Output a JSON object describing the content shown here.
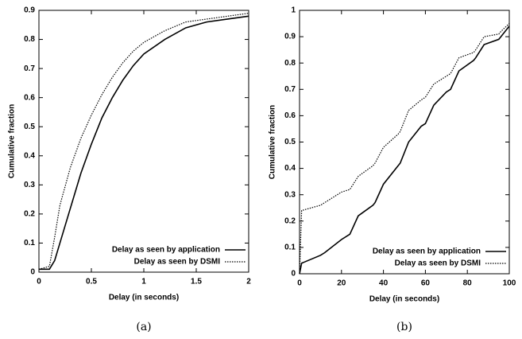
{
  "chart_data": [
    {
      "type": "line",
      "caption": "(a)",
      "xlabel": "Delay (in seconds)",
      "ylabel": "Cumulative fraction",
      "xlim": [
        0,
        2
      ],
      "ylim": [
        0,
        0.9
      ],
      "xticks": [
        0,
        0.5,
        1,
        1.5,
        2
      ],
      "yticks": [
        0,
        0.1,
        0.2,
        0.3,
        0.4,
        0.5,
        0.6,
        0.7,
        0.8,
        0.9
      ],
      "legend": "lower right",
      "x": [
        0,
        0.1,
        0.15,
        0.2,
        0.3,
        0.4,
        0.5,
        0.6,
        0.7,
        0.8,
        0.9,
        1.0,
        1.2,
        1.4,
        1.6,
        1.8,
        2.0
      ],
      "series": [
        {
          "name": "Delay as seen by application",
          "color": "#000000",
          "line_style": "solid",
          "values": [
            0.01,
            0.01,
            0.04,
            0.1,
            0.22,
            0.34,
            0.44,
            0.53,
            0.6,
            0.66,
            0.71,
            0.75,
            0.8,
            0.84,
            0.86,
            0.87,
            0.88
          ]
        },
        {
          "name": "Delay as seen by DSMI",
          "color": "#000000",
          "line_style": "dotted",
          "values": [
            0.01,
            0.02,
            0.12,
            0.23,
            0.36,
            0.46,
            0.54,
            0.61,
            0.67,
            0.72,
            0.76,
            0.79,
            0.83,
            0.86,
            0.87,
            0.88,
            0.89
          ]
        }
      ]
    },
    {
      "type": "line",
      "caption": "(b)",
      "xlabel": "Delay (in seconds)",
      "ylabel": "Cumulative fraction",
      "xlim": [
        0,
        100
      ],
      "ylim": [
        0,
        1
      ],
      "xticks": [
        0,
        20,
        40,
        60,
        80,
        100
      ],
      "yticks": [
        0,
        0.1,
        0.2,
        0.3,
        0.4,
        0.5,
        0.6,
        0.7,
        0.8,
        0.9,
        1
      ],
      "legend": "lower right",
      "x": [
        0,
        1,
        10,
        12,
        20,
        24,
        28,
        35,
        36,
        40,
        47,
        48,
        52,
        58,
        60,
        64,
        70,
        72,
        76,
        83,
        84,
        88,
        95,
        96,
        100
      ],
      "series": [
        {
          "name": "Delay as seen by application",
          "color": "#000000",
          "line_style": "solid",
          "values": [
            0,
            0.04,
            0.07,
            0.08,
            0.13,
            0.15,
            0.22,
            0.26,
            0.27,
            0.34,
            0.41,
            0.42,
            0.5,
            0.56,
            0.57,
            0.64,
            0.69,
            0.7,
            0.77,
            0.81,
            0.82,
            0.87,
            0.89,
            0.9,
            0.94
          ]
        },
        {
          "name": "Delay as seen by DSMI",
          "color": "#000000",
          "line_style": "dotted",
          "values": [
            0,
            0.24,
            0.26,
            0.27,
            0.31,
            0.32,
            0.37,
            0.41,
            0.42,
            0.48,
            0.53,
            0.54,
            0.62,
            0.66,
            0.67,
            0.72,
            0.75,
            0.76,
            0.82,
            0.84,
            0.85,
            0.9,
            0.91,
            0.92,
            0.95
          ]
        }
      ]
    }
  ]
}
